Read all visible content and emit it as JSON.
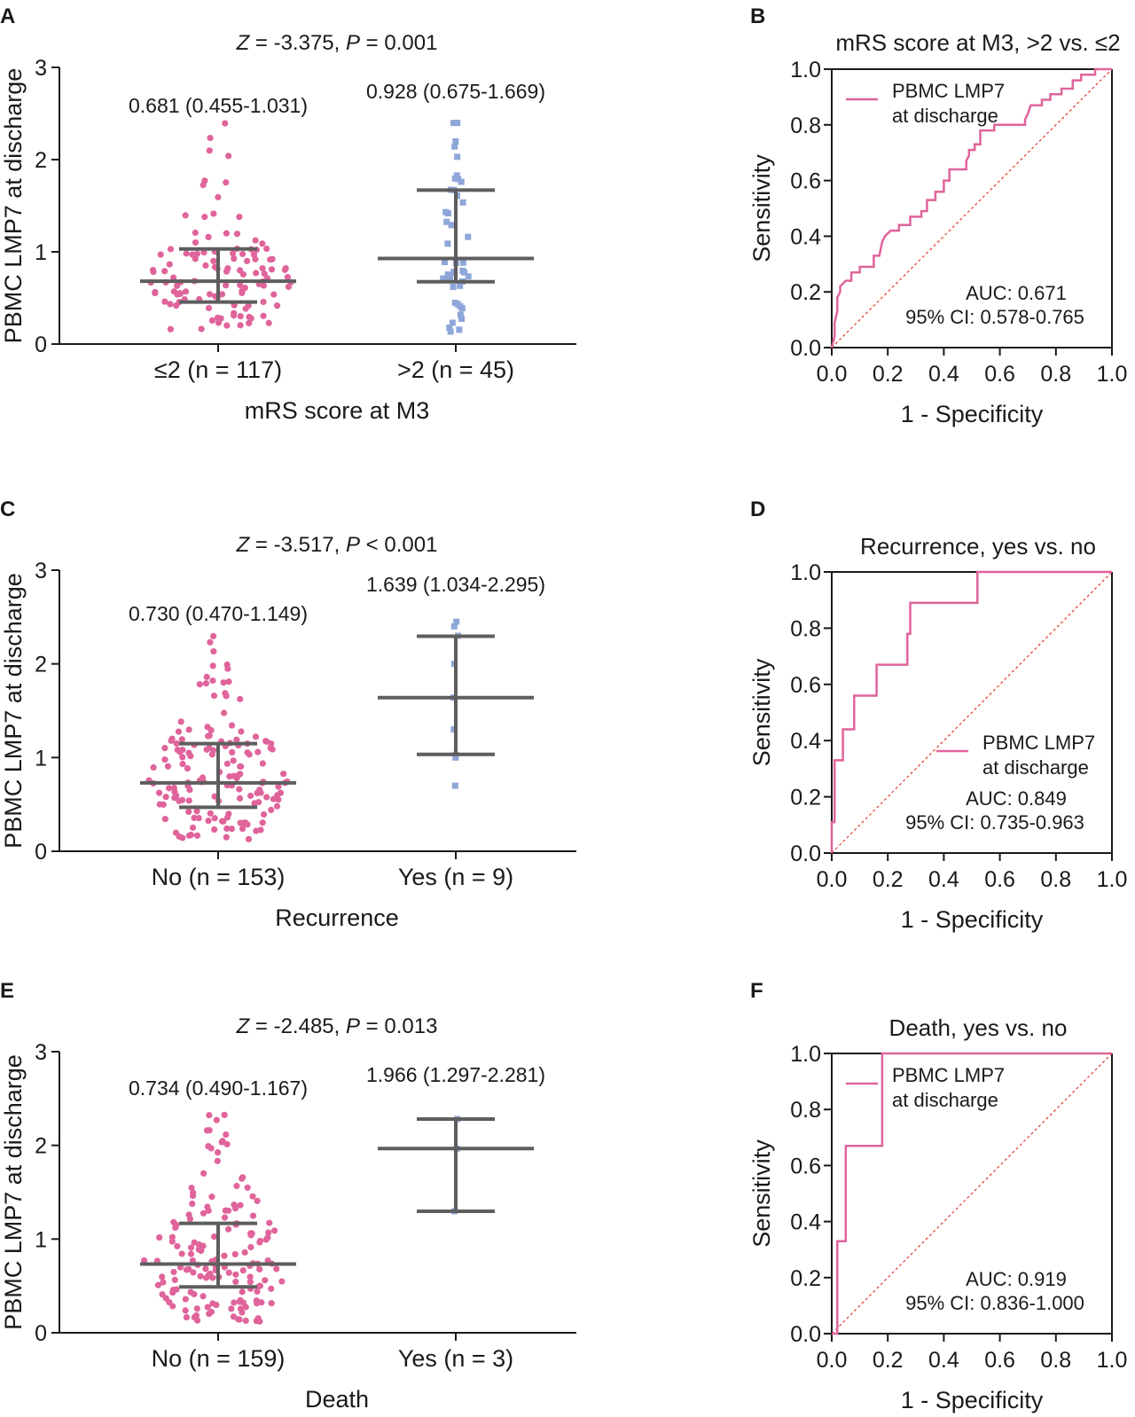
{
  "colors": {
    "group1": "#e0649b",
    "group2": "#8ea6d8",
    "summary": "#5e5e5e",
    "reference": "#e0322c"
  },
  "chart_data": [
    {
      "panel": "A",
      "type": "scatter",
      "stat_z": "-3.375",
      "stat_p_op": "=",
      "stat_p": "0.001",
      "ylabel": "PBMC LMP7 at discharge",
      "xlabel": "mRS score at M3",
      "ylim": [
        0,
        3
      ],
      "yticks": [
        "0",
        "1",
        "2",
        "3"
      ],
      "groups": [
        {
          "label": "≤2 (n = 117)",
          "n": 117,
          "median": 0.681,
          "q1": 0.455,
          "q3": 1.031,
          "max": 2.4,
          "summary_text": "0.681 (0.455-1.031)",
          "color": "#e0649b",
          "shape": "circle"
        },
        {
          "label": ">2 (n = 45)",
          "n": 45,
          "median": 0.928,
          "q1": 0.675,
          "q3": 1.669,
          "max": 2.45,
          "summary_text": "0.928 (0.675-1.669)",
          "color": "#8ea6d8",
          "shape": "square"
        }
      ]
    },
    {
      "panel": "B",
      "type": "line",
      "title": "mRS score at M3, >2 vs. ≤2",
      "xlabel": "1 - Specificity",
      "ylabel": "Sensitivity",
      "xlim": [
        0,
        1
      ],
      "ylim": [
        0,
        1
      ],
      "xticks": [
        "0.0",
        "0.2",
        "0.4",
        "0.6",
        "0.8",
        "1.0"
      ],
      "yticks": [
        "0.0",
        "0.2",
        "0.4",
        "0.6",
        "0.8",
        "1.0"
      ],
      "legend": [
        "PBMC LMP7",
        "at discharge"
      ],
      "legend_pos": "top-left",
      "auc_text": "AUC: 0.671",
      "ci_text": "95% CI: 0.578-0.765",
      "roc": [
        [
          0,
          0
        ],
        [
          0.01,
          0.04
        ],
        [
          0.01,
          0.09
        ],
        [
          0.02,
          0.13
        ],
        [
          0.02,
          0.18
        ],
        [
          0.03,
          0.2
        ],
        [
          0.03,
          0.22
        ],
        [
          0.05,
          0.24
        ],
        [
          0.07,
          0.24
        ],
        [
          0.07,
          0.27
        ],
        [
          0.1,
          0.27
        ],
        [
          0.1,
          0.29
        ],
        [
          0.15,
          0.29
        ],
        [
          0.15,
          0.33
        ],
        [
          0.17,
          0.33
        ],
        [
          0.18,
          0.38
        ],
        [
          0.19,
          0.4
        ],
        [
          0.21,
          0.42
        ],
        [
          0.24,
          0.42
        ],
        [
          0.24,
          0.44
        ],
        [
          0.28,
          0.44
        ],
        [
          0.28,
          0.47
        ],
        [
          0.32,
          0.47
        ],
        [
          0.32,
          0.49
        ],
        [
          0.34,
          0.49
        ],
        [
          0.34,
          0.53
        ],
        [
          0.37,
          0.53
        ],
        [
          0.37,
          0.56
        ],
        [
          0.4,
          0.56
        ],
        [
          0.4,
          0.6
        ],
        [
          0.42,
          0.6
        ],
        [
          0.42,
          0.64
        ],
        [
          0.48,
          0.64
        ],
        [
          0.48,
          0.67
        ],
        [
          0.49,
          0.69
        ],
        [
          0.49,
          0.71
        ],
        [
          0.51,
          0.71
        ],
        [
          0.51,
          0.73
        ],
        [
          0.53,
          0.73
        ],
        [
          0.53,
          0.78
        ],
        [
          0.58,
          0.78
        ],
        [
          0.58,
          0.8
        ],
        [
          0.69,
          0.8
        ],
        [
          0.69,
          0.82
        ],
        [
          0.7,
          0.84
        ],
        [
          0.71,
          0.87
        ],
        [
          0.75,
          0.87
        ],
        [
          0.75,
          0.89
        ],
        [
          0.78,
          0.89
        ],
        [
          0.78,
          0.91
        ],
        [
          0.82,
          0.91
        ],
        [
          0.82,
          0.93
        ],
        [
          0.86,
          0.93
        ],
        [
          0.86,
          0.96
        ],
        [
          0.89,
          0.96
        ],
        [
          0.89,
          0.98
        ],
        [
          0.94,
          0.98
        ],
        [
          0.94,
          1.0
        ],
        [
          1.0,
          1.0
        ]
      ]
    },
    {
      "panel": "C",
      "type": "scatter",
      "stat_z": "-3.517",
      "stat_p_op": "<",
      "stat_p": "0.001",
      "ylabel": "PBMC LMP7 at discharge",
      "xlabel": "Recurrence",
      "ylim": [
        0,
        3
      ],
      "yticks": [
        "0",
        "1",
        "2",
        "3"
      ],
      "groups": [
        {
          "label": "No (n = 153)",
          "n": 153,
          "median": 0.73,
          "q1": 0.47,
          "q3": 1.149,
          "max": 2.3,
          "summary_text": "0.730 (0.470-1.149)",
          "color": "#e0649b",
          "shape": "circle"
        },
        {
          "label": "Yes (n = 9)",
          "n": 9,
          "median": 1.639,
          "q1": 1.034,
          "q3": 2.295,
          "points": [
            0.7,
            1.0,
            1.03,
            1.3,
            1.64,
            2.0,
            2.3,
            2.4,
            2.45
          ],
          "summary_text": "1.639 (1.034-2.295)",
          "color": "#8ea6d8",
          "shape": "square"
        }
      ]
    },
    {
      "panel": "D",
      "type": "line",
      "title": "Recurrence, yes vs. no",
      "xlabel": "1 - Specificity",
      "ylabel": "Sensitivity",
      "xlim": [
        0,
        1
      ],
      "ylim": [
        0,
        1
      ],
      "xticks": [
        "0.0",
        "0.2",
        "0.4",
        "0.6",
        "0.8",
        "1.0"
      ],
      "yticks": [
        "0.0",
        "0.2",
        "0.4",
        "0.6",
        "0.8",
        "1.0"
      ],
      "legend": [
        "PBMC LMP7",
        "at discharge"
      ],
      "legend_pos": "bottom-right",
      "auc_text": "AUC: 0.849",
      "ci_text": "95% CI: 0.735-0.963",
      "roc": [
        [
          0,
          0
        ],
        [
          0,
          0.11
        ],
        [
          0.01,
          0.11
        ],
        [
          0.01,
          0.33
        ],
        [
          0.04,
          0.33
        ],
        [
          0.04,
          0.44
        ],
        [
          0.08,
          0.44
        ],
        [
          0.08,
          0.56
        ],
        [
          0.16,
          0.56
        ],
        [
          0.16,
          0.67
        ],
        [
          0.27,
          0.67
        ],
        [
          0.27,
          0.78
        ],
        [
          0.28,
          0.78
        ],
        [
          0.28,
          0.89
        ],
        [
          0.52,
          0.89
        ],
        [
          0.52,
          1.0
        ],
        [
          1.0,
          1.0
        ]
      ]
    },
    {
      "panel": "E",
      "type": "scatter",
      "stat_z": "-2.485",
      "stat_p_op": "=",
      "stat_p": "0.013",
      "ylabel": "PBMC LMP7 at discharge",
      "xlabel": "Death",
      "ylim": [
        0,
        3
      ],
      "yticks": [
        "0",
        "1",
        "2",
        "3"
      ],
      "groups": [
        {
          "label": "No (n = 159)",
          "n": 159,
          "median": 0.734,
          "q1": 0.49,
          "q3": 1.167,
          "max": 2.45,
          "summary_text": "0.734 (0.490-1.167)",
          "color": "#e0649b",
          "shape": "circle"
        },
        {
          "label": "Yes (n = 3)",
          "n": 3,
          "median": 1.966,
          "q1": 1.297,
          "q3": 2.281,
          "points": [
            1.297,
            1.966,
            2.281
          ],
          "summary_text": "1.966 (1.297-2.281)",
          "color": "#8ea6d8",
          "shape": "square"
        }
      ]
    },
    {
      "panel": "F",
      "type": "line",
      "title": "Death, yes vs. no",
      "xlabel": "1 - Specificity",
      "ylabel": "Sensitivity",
      "xlim": [
        0,
        1
      ],
      "ylim": [
        0,
        1
      ],
      "xticks": [
        "0.0",
        "0.2",
        "0.4",
        "0.6",
        "0.8",
        "1.0"
      ],
      "yticks": [
        "0.0",
        "0.2",
        "0.4",
        "0.6",
        "0.8",
        "1.0"
      ],
      "legend": [
        "PBMC LMP7",
        "at discharge"
      ],
      "legend_pos": "top-left",
      "auc_text": "AUC: 0.919",
      "ci_text": "95% CI: 0.836-1.000",
      "roc": [
        [
          0,
          0
        ],
        [
          0.02,
          0
        ],
        [
          0.02,
          0.33
        ],
        [
          0.05,
          0.33
        ],
        [
          0.05,
          0.67
        ],
        [
          0.18,
          0.67
        ],
        [
          0.18,
          1.0
        ],
        [
          1.0,
          1.0
        ]
      ]
    }
  ]
}
